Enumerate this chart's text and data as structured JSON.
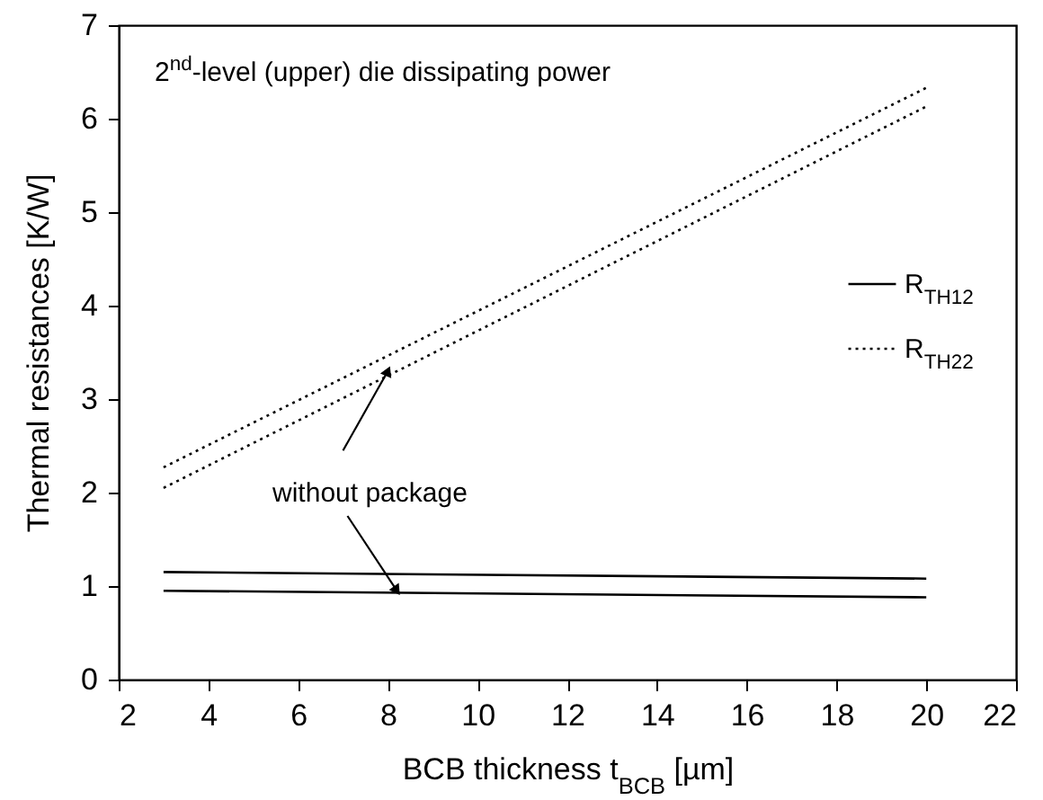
{
  "chart_data": {
    "type": "line",
    "title": "2$^{nd}$-level (upper) die dissipating power",
    "xlabel": "BCB thickness t$_{BCB}$ [µm]",
    "ylabel": "Thermal resistances [K/W]",
    "x": [
      3,
      20
    ],
    "series": [
      {
        "name": "R$_{TH12}$",
        "color": "#000000",
        "line_style": "solid",
        "values": [
          1.15,
          1.08
        ]
      },
      {
        "color": "#000000",
        "line_style": "solid",
        "values": [
          0.95,
          0.88
        ]
      },
      {
        "name": "R$_{TH22}$",
        "color": "#000000",
        "line_style": "dotted",
        "values": [
          2.27,
          6.33
        ]
      },
      {
        "color": "#000000",
        "line_style": "dotted",
        "values": [
          2.05,
          6.13
        ]
      }
    ],
    "annotations": [
      {
        "text": "without package",
        "x": 8,
        "y": 3.3
      }
    ],
    "xlim": [
      2,
      22
    ],
    "xticks": [
      2,
      4,
      6,
      8,
      10,
      12,
      14,
      16,
      18,
      20,
      22
    ],
    "ylim": [
      0,
      7
    ],
    "yticks": [
      0,
      1,
      2,
      3,
      4,
      5,
      6,
      7
    ],
    "grid": false,
    "legend": "right",
    "marker": "none"
  }
}
